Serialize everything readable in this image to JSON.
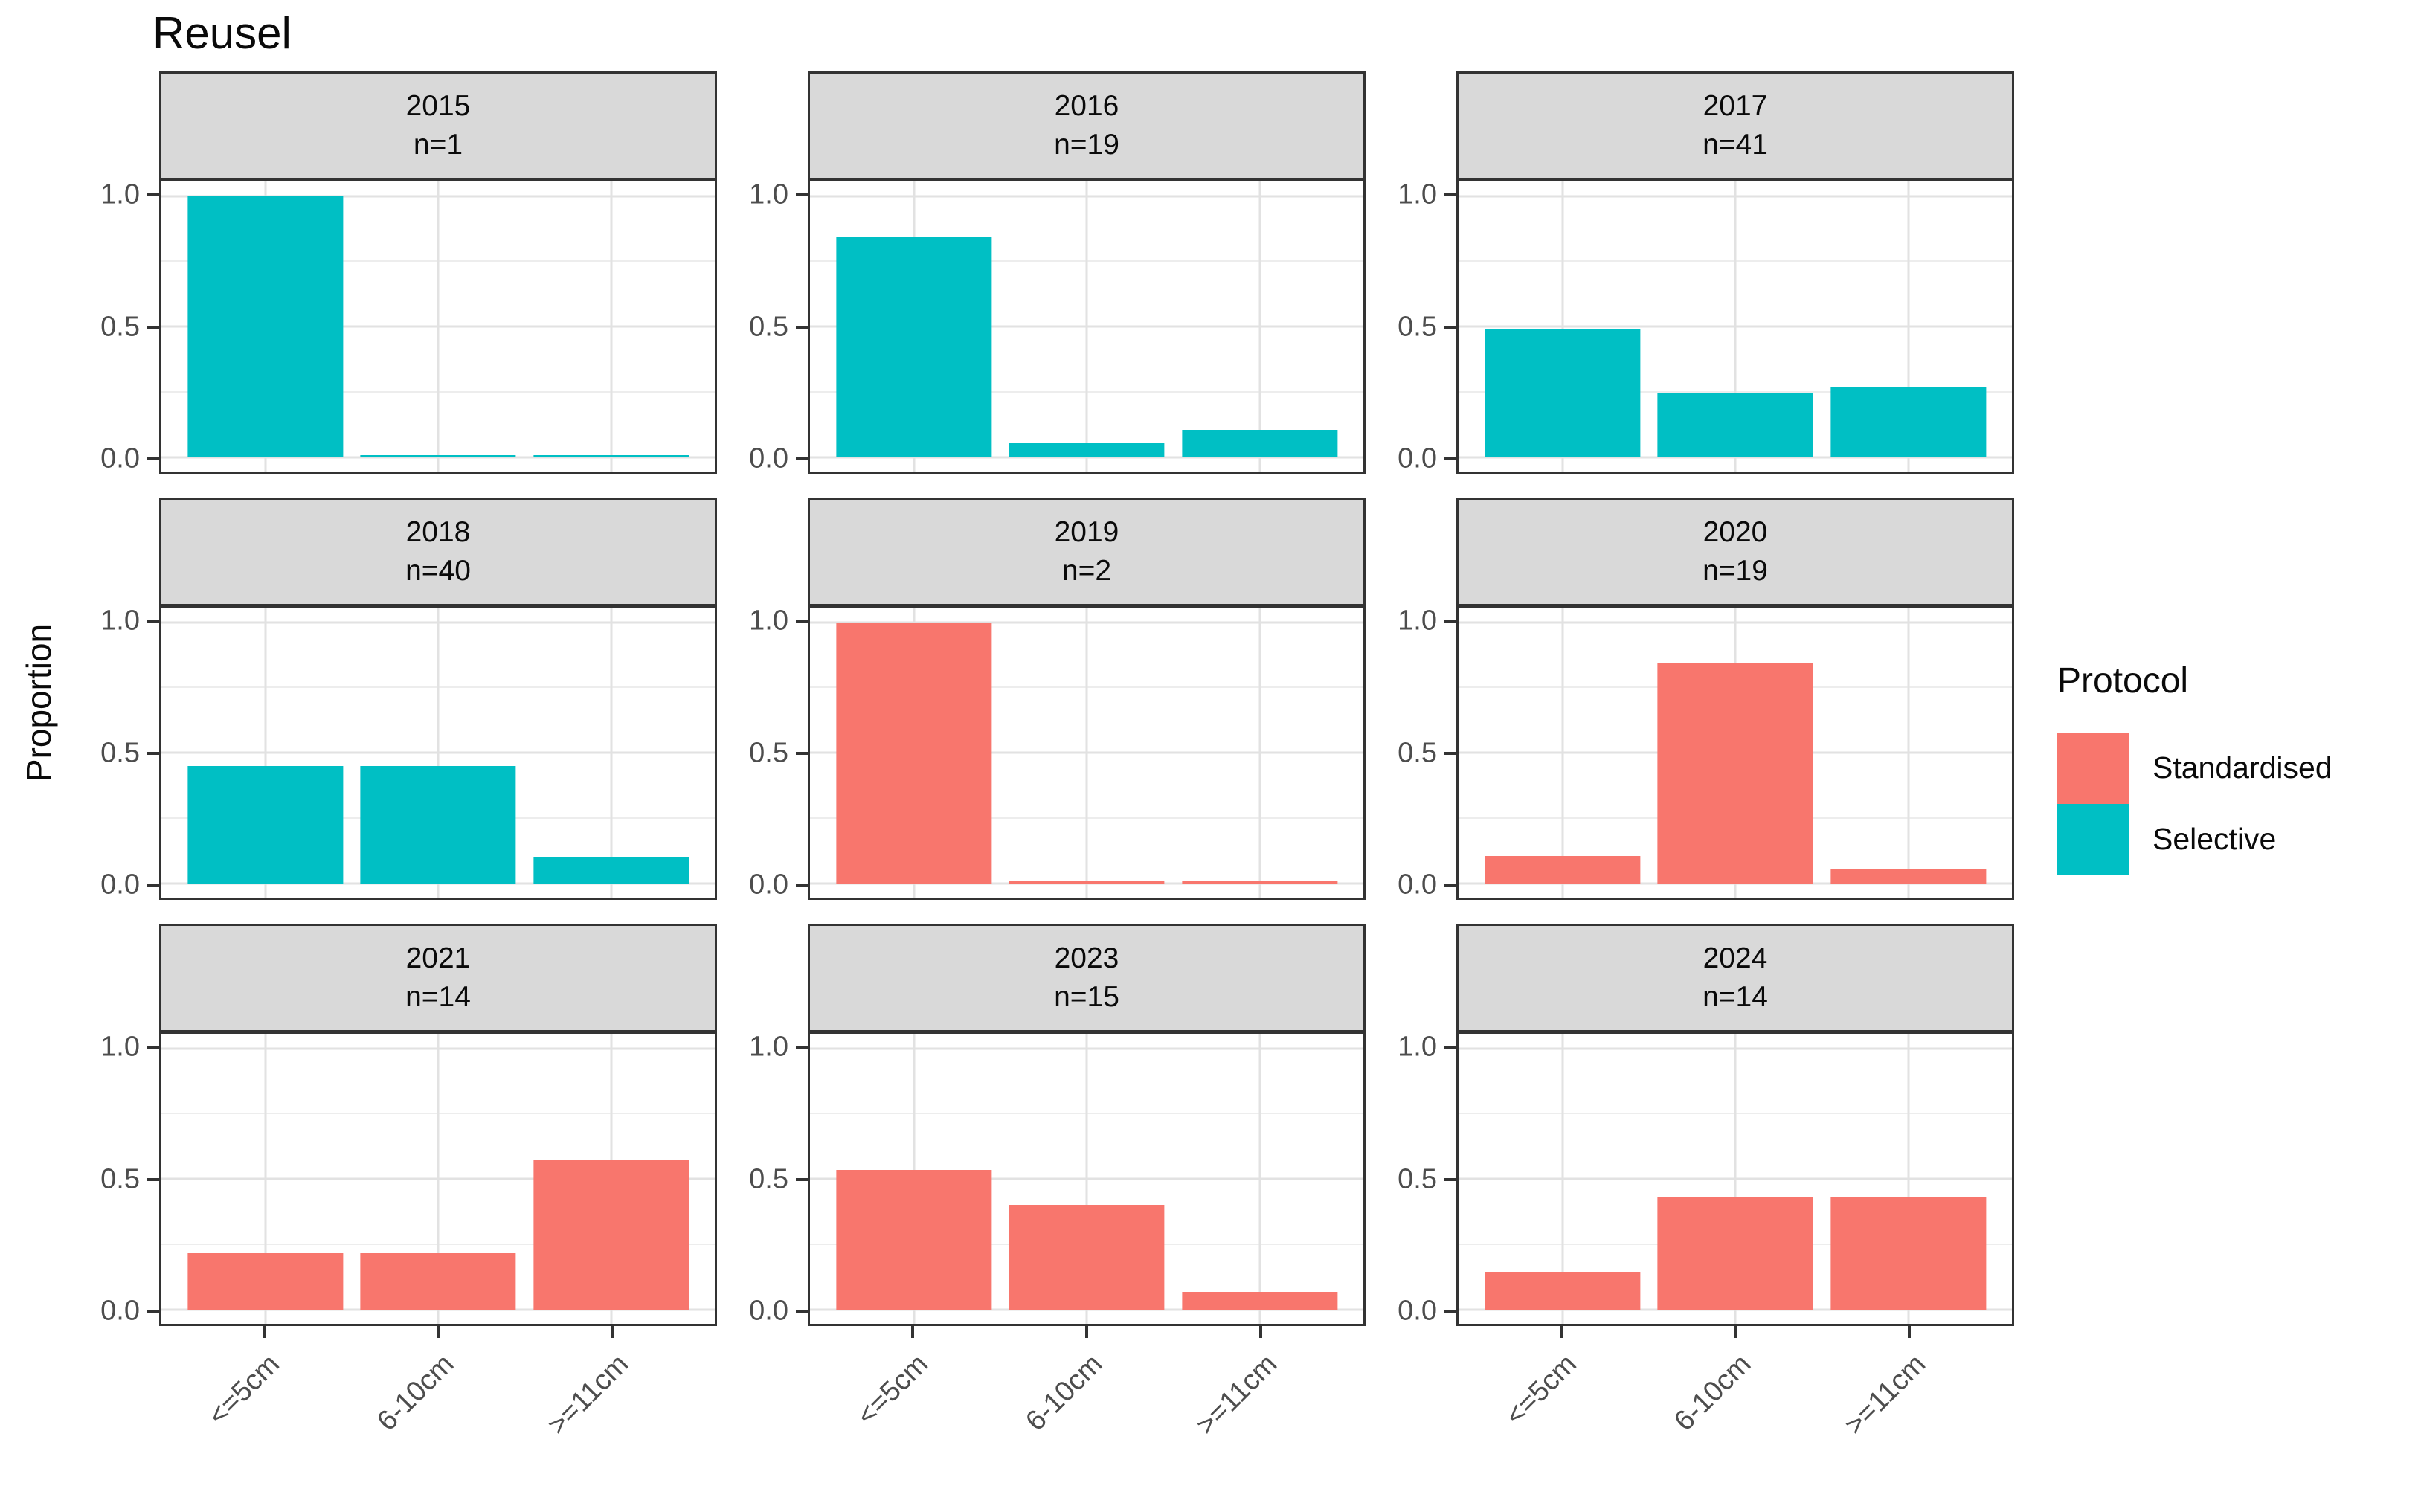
{
  "chart_data": {
    "type": "bar",
    "title": "Reusel",
    "ylabel": "Proportion",
    "xlabel": "",
    "categories": [
      "<=5cm",
      "6-10cm",
      ">=11cm"
    ],
    "ylim": [
      0,
      1
    ],
    "ytick_labels": [
      "1.0",
      "0.5",
      "0.0"
    ],
    "ytick_values": [
      1.0,
      0.5,
      0.0
    ],
    "grid_minor_values": [
      0.25,
      0.75
    ],
    "grid": true,
    "legend_title": "Protocol",
    "legend_position": "right",
    "series_colors": {
      "Standardised": "#F8766D",
      "Selective": "#00BFC4"
    },
    "legend_entries": [
      {
        "label": "Standardised",
        "color": "#F8766D"
      },
      {
        "label": "Selective",
        "color": "#00BFC4"
      }
    ],
    "facets": [
      {
        "year": "2015",
        "n_label": "n=1",
        "protocol": "Selective",
        "values": [
          1.0,
          0.006,
          0.006
        ]
      },
      {
        "year": "2016",
        "n_label": "n=19",
        "protocol": "Selective",
        "values": [
          0.842,
          0.053,
          0.105
        ]
      },
      {
        "year": "2017",
        "n_label": "n=41",
        "protocol": "Selective",
        "values": [
          0.488,
          0.244,
          0.268
        ]
      },
      {
        "year": "2018",
        "n_label": "n=40",
        "protocol": "Selective",
        "values": [
          0.45,
          0.45,
          0.1
        ]
      },
      {
        "year": "2019",
        "n_label": "n=2",
        "protocol": "Standardised",
        "values": [
          1.0,
          0.006,
          0.006
        ]
      },
      {
        "year": "2020",
        "n_label": "n=19",
        "protocol": "Standardised",
        "values": [
          0.105,
          0.842,
          0.053
        ]
      },
      {
        "year": "2021",
        "n_label": "n=14",
        "protocol": "Standardised",
        "values": [
          0.214,
          0.214,
          0.571
        ]
      },
      {
        "year": "2023",
        "n_label": "n=15",
        "protocol": "Standardised",
        "values": [
          0.533,
          0.4,
          0.067
        ]
      },
      {
        "year": "2024",
        "n_label": "n=14",
        "protocol": "Standardised",
        "values": [
          0.143,
          0.429,
          0.429
        ]
      }
    ]
  }
}
